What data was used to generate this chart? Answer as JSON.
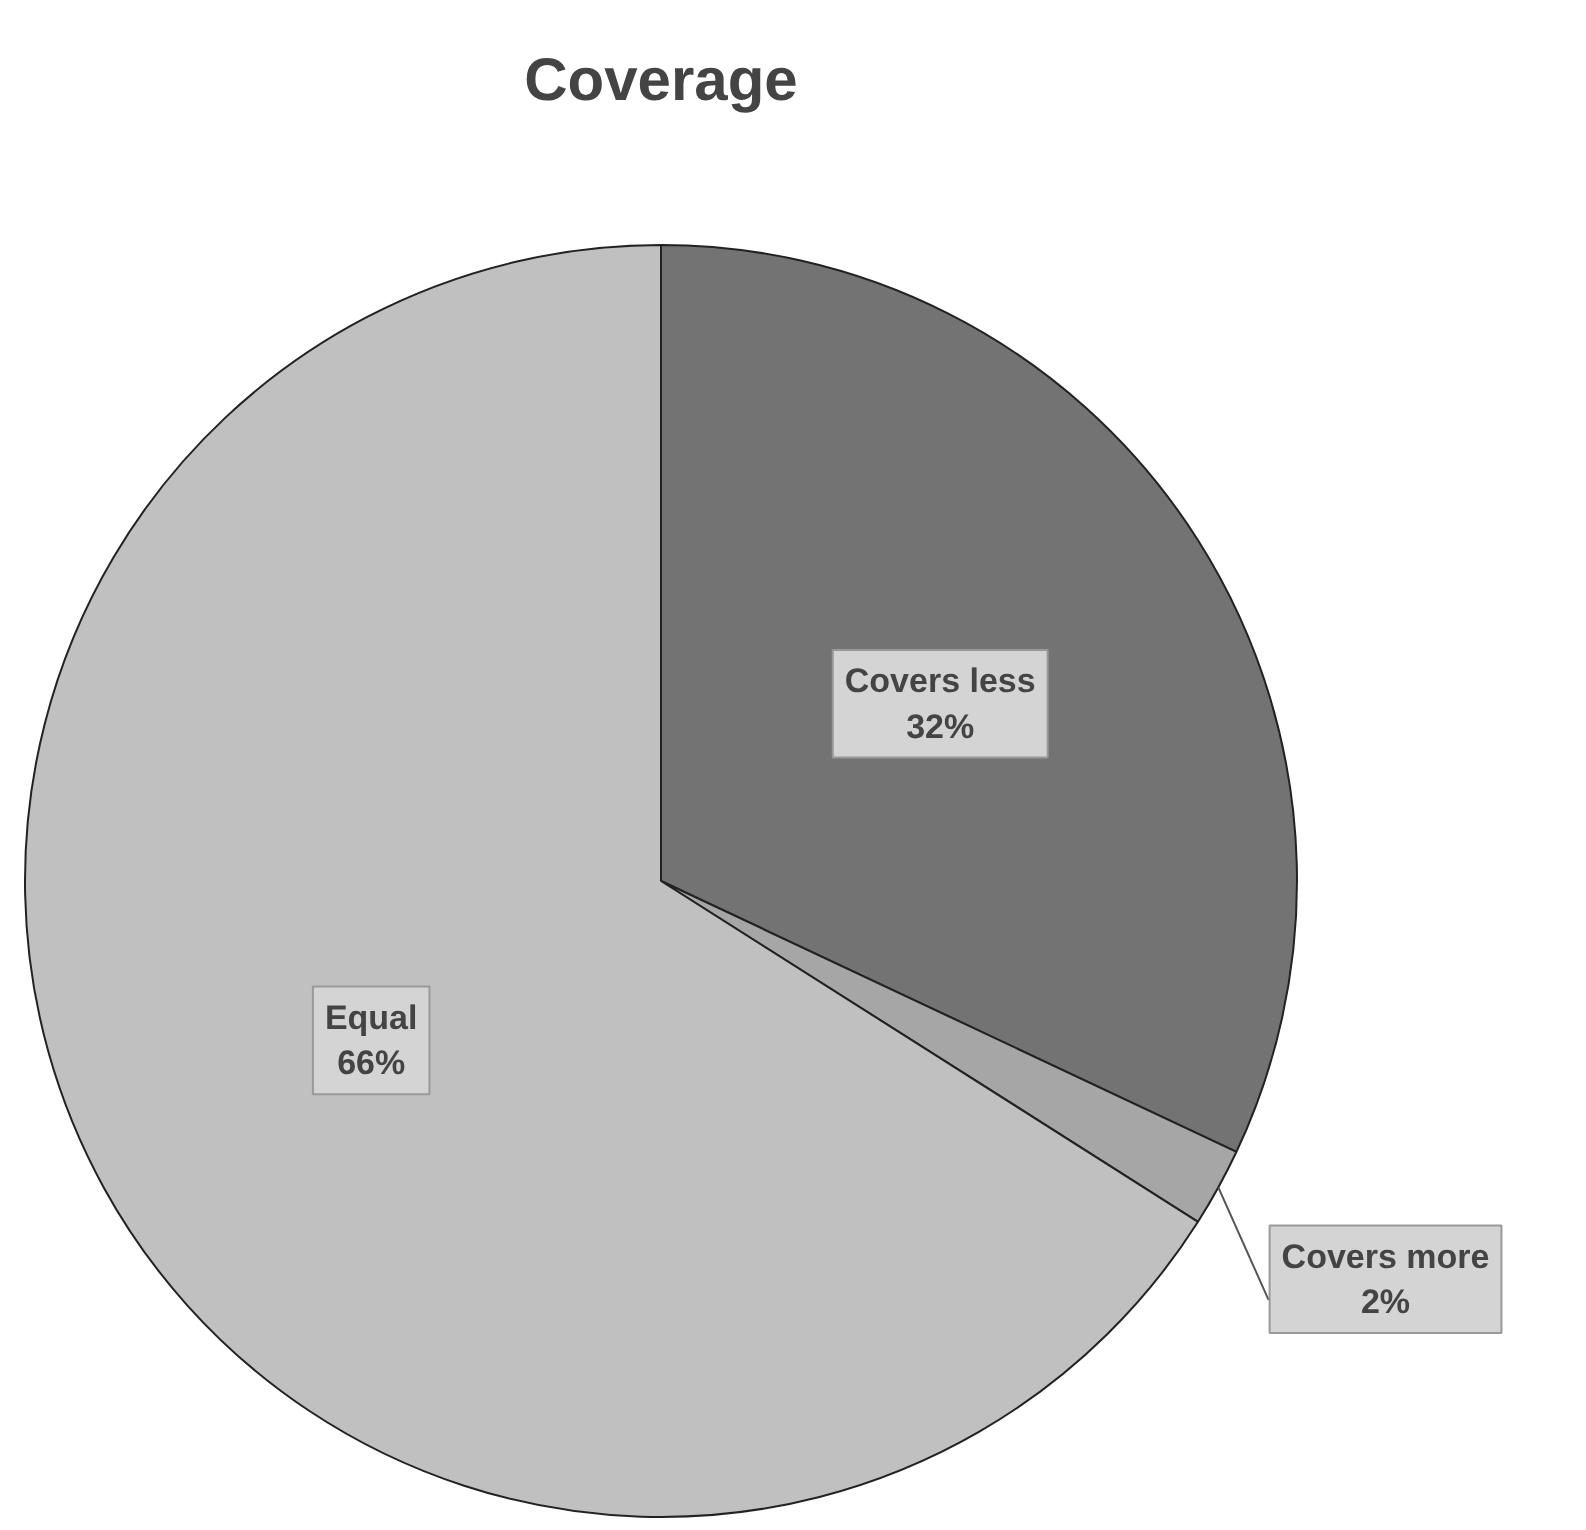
{
  "chart_data": {
    "type": "pie",
    "title": "Coverage",
    "categories": [
      "Covers less",
      "Covers more",
      "Equal"
    ],
    "values": [
      32,
      2,
      66
    ],
    "value_labels": [
      "32%",
      "2%",
      "66%"
    ],
    "colors": [
      "#737373",
      "#a6a6a6",
      "#c0c0c0"
    ]
  }
}
